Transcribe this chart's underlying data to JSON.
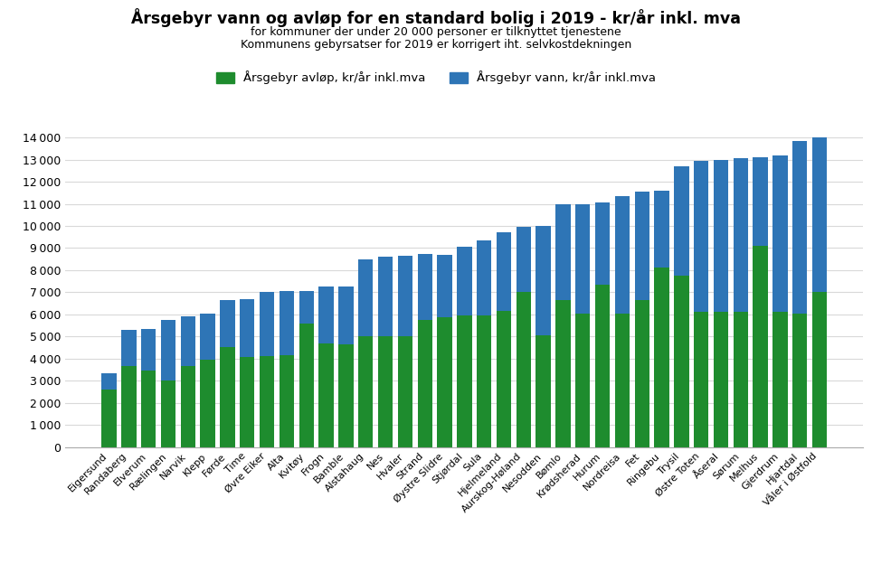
{
  "title": "Årsgebyr vann og avløp for en standard bolig i 2019 - kr/år inkl. mva",
  "subtitle1": "for kommuner der under 20 000 personer er tilknyttet tjenestene",
  "subtitle2": "Kommunens gebyrsatser for 2019 er korrigert iht. selvkostdekningen",
  "legend_avlop": "Årsgebyr avløp, kr/år inkl.mva",
  "legend_vann": "Årsgebyr vann, kr/år inkl.mva",
  "categories": [
    "Eigersund",
    "Randaberg",
    "Elverum",
    "Rælingen",
    "Narvik",
    "Klepp",
    "Førde",
    "Time",
    "Øvre Eiker",
    "Alta",
    "Kvitøy",
    "Frogn",
    "Bamble",
    "Alstahaug",
    "Nes",
    "Hvaler",
    "Strand",
    "Øystre Slidre",
    "Stjørdal",
    "Sula",
    "Hjelmeland",
    "Aurskog-Høland",
    "Nesodden",
    "Bømlo",
    "Krødsherad",
    "Hurum",
    "Nordreisa",
    "Fet",
    "Ringebu",
    "Trysil",
    "Østre Toten",
    "Åseral",
    "Sørum",
    "Melhus",
    "Gjerdrum",
    "Hjartdal",
    "Våler i Østfold"
  ],
  "avlop": [
    2600,
    3650,
    3450,
    3000,
    3650,
    3950,
    4500,
    4050,
    4100,
    4150,
    5600,
    4700,
    4650,
    5000,
    5000,
    5000,
    5750,
    5850,
    5950,
    5950,
    6150,
    7000,
    5050,
    6650,
    6050,
    7350,
    6050,
    6650,
    8100,
    7750,
    6100,
    6100,
    6100,
    9100,
    6100,
    6050,
    7000
  ],
  "vann": [
    750,
    1650,
    1900,
    2750,
    2250,
    2100,
    2150,
    2650,
    2900,
    2900,
    1450,
    2550,
    2600,
    3500,
    3600,
    3650,
    3000,
    2850,
    3100,
    3400,
    3550,
    2950,
    4950,
    4350,
    4950,
    3700,
    5300,
    4900,
    3500,
    4950,
    6850,
    6900,
    6950,
    4000,
    7100,
    7800,
    7000
  ],
  "color_avlop": "#1e8c2e",
  "color_vann": "#2e75b6",
  "ylim": [
    0,
    14000
  ],
  "yticks": [
    0,
    1000,
    2000,
    3000,
    4000,
    5000,
    6000,
    7000,
    8000,
    9000,
    10000,
    11000,
    12000,
    13000,
    14000
  ],
  "background_color": "#ffffff",
  "grid_color": "#d9d9d9"
}
